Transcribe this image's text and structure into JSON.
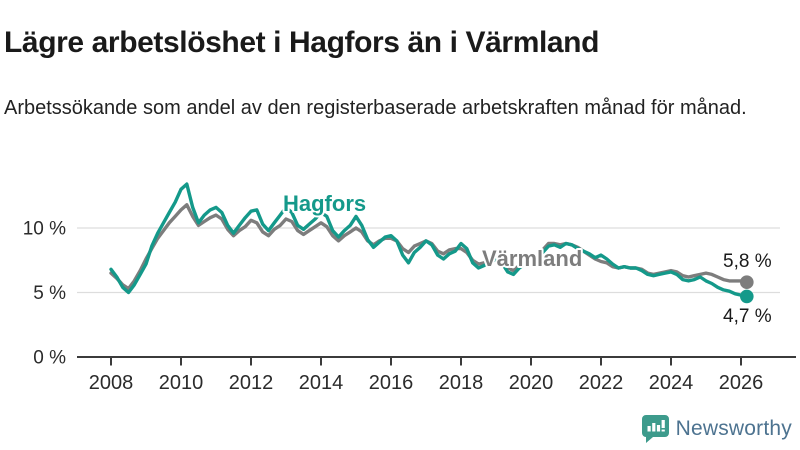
{
  "header": {
    "title": "Lägre arbetslöshet i Hagfors än i Värmland",
    "subtitle": "Arbetssökande som andel av den registerbaserade arbetskraften månad för månad."
  },
  "chart": {
    "y_ticks": [
      {
        "label": "0 %",
        "value": 0
      },
      {
        "label": "5 %",
        "value": 5
      },
      {
        "label": "10 %",
        "value": 10
      }
    ],
    "x_ticks": [
      "2008",
      "2010",
      "2012",
      "2014",
      "2016",
      "2018",
      "2020",
      "2022",
      "2024",
      "2026"
    ],
    "series_labels": {
      "hagfors": "Hagfors",
      "varmland": "Värmland"
    },
    "end_labels": {
      "varmland": "5,8 %",
      "hagfors": "4,7 %"
    },
    "colors": {
      "hagfors": "#14998a",
      "varmland": "#7d7d7d",
      "grid": "#dddddd",
      "axis": "#3b3b3b",
      "tick_text": "#2b2b2b",
      "end_label_text": "#1a1a1a"
    }
  },
  "chart_data": {
    "type": "line",
    "title": "Lägre arbetslöshet i Hagfors än i Värmland",
    "subtitle": "Arbetssökande som andel av den registerbaserade arbetskraften månad för månad.",
    "xlabel": "",
    "ylabel": "",
    "x_start_year": 2008.0,
    "x_step_years": 0.16667,
    "x_end_year": 2026.17,
    "ylim": [
      0,
      16.8
    ],
    "y_gridlines": [
      5,
      10
    ],
    "legend_position": "inline-labels",
    "grid": "horizontal-only",
    "series": [
      {
        "name": "Hagfors",
        "color_key": "hagfors",
        "end_value_label": "4,7 %",
        "values": [
          6.8,
          6.2,
          5.4,
          5.0,
          5.6,
          6.4,
          7.2,
          8.6,
          9.6,
          10.4,
          11.2,
          12.0,
          13.0,
          13.4,
          11.6,
          10.4,
          11.0,
          11.4,
          11.6,
          11.2,
          10.2,
          9.6,
          10.2,
          10.8,
          11.3,
          11.4,
          10.3,
          9.8,
          10.4,
          11.0,
          11.6,
          11.2,
          10.2,
          9.9,
          10.3,
          10.7,
          11.2,
          10.9,
          9.8,
          9.3,
          9.8,
          10.2,
          10.9,
          10.2,
          9.1,
          8.5,
          8.9,
          9.3,
          9.4,
          9.0,
          7.9,
          7.3,
          8.1,
          8.5,
          9.0,
          8.7,
          7.9,
          7.6,
          8.0,
          8.2,
          8.8,
          8.4,
          7.3,
          6.9,
          7.1,
          7.3,
          7.6,
          7.3,
          6.6,
          6.4,
          6.9,
          7.2,
          7.2,
          7.4,
          8.1,
          8.6,
          8.7,
          8.5,
          8.8,
          8.7,
          8.4,
          8.2,
          8.0,
          7.7,
          7.9,
          7.6,
          7.2,
          6.9,
          7.0,
          6.9,
          6.9,
          6.7,
          6.4,
          6.3,
          6.4,
          6.5,
          6.6,
          6.4,
          6.0,
          5.9,
          6.0,
          6.2,
          5.9,
          5.7,
          5.4,
          5.2,
          5.1,
          4.9,
          4.8,
          4.7
        ]
      },
      {
        "name": "Värmland",
        "color_key": "varmland",
        "end_value_label": "5,8 %",
        "values": [
          6.5,
          6.1,
          5.6,
          5.3,
          5.9,
          6.7,
          7.6,
          8.4,
          9.2,
          9.8,
          10.4,
          10.9,
          11.4,
          11.8,
          10.9,
          10.2,
          10.5,
          10.8,
          11.0,
          10.7,
          9.9,
          9.4,
          9.8,
          10.1,
          10.6,
          10.4,
          9.7,
          9.4,
          9.9,
          10.2,
          10.7,
          10.5,
          9.8,
          9.5,
          9.8,
          10.1,
          10.4,
          10.1,
          9.4,
          9.0,
          9.4,
          9.7,
          10.0,
          9.7,
          9.0,
          8.7,
          9.0,
          9.2,
          9.2,
          9.0,
          8.4,
          8.1,
          8.6,
          8.8,
          9.0,
          8.8,
          8.2,
          8.0,
          8.3,
          8.4,
          8.4,
          8.1,
          7.5,
          7.2,
          7.3,
          7.5,
          7.6,
          7.4,
          6.9,
          6.7,
          7.1,
          7.3,
          7.3,
          7.5,
          8.3,
          8.8,
          8.8,
          8.7,
          8.8,
          8.7,
          8.5,
          8.2,
          7.9,
          7.6,
          7.4,
          7.3,
          7.0,
          6.9,
          7.0,
          6.9,
          6.9,
          6.8,
          6.5,
          6.4,
          6.5,
          6.6,
          6.7,
          6.6,
          6.3,
          6.2,
          6.3,
          6.4,
          6.5,
          6.4,
          6.2,
          6.0,
          5.9,
          5.9,
          5.9,
          5.8
        ]
      }
    ]
  },
  "footer": {
    "brand": "Newsworthy"
  }
}
